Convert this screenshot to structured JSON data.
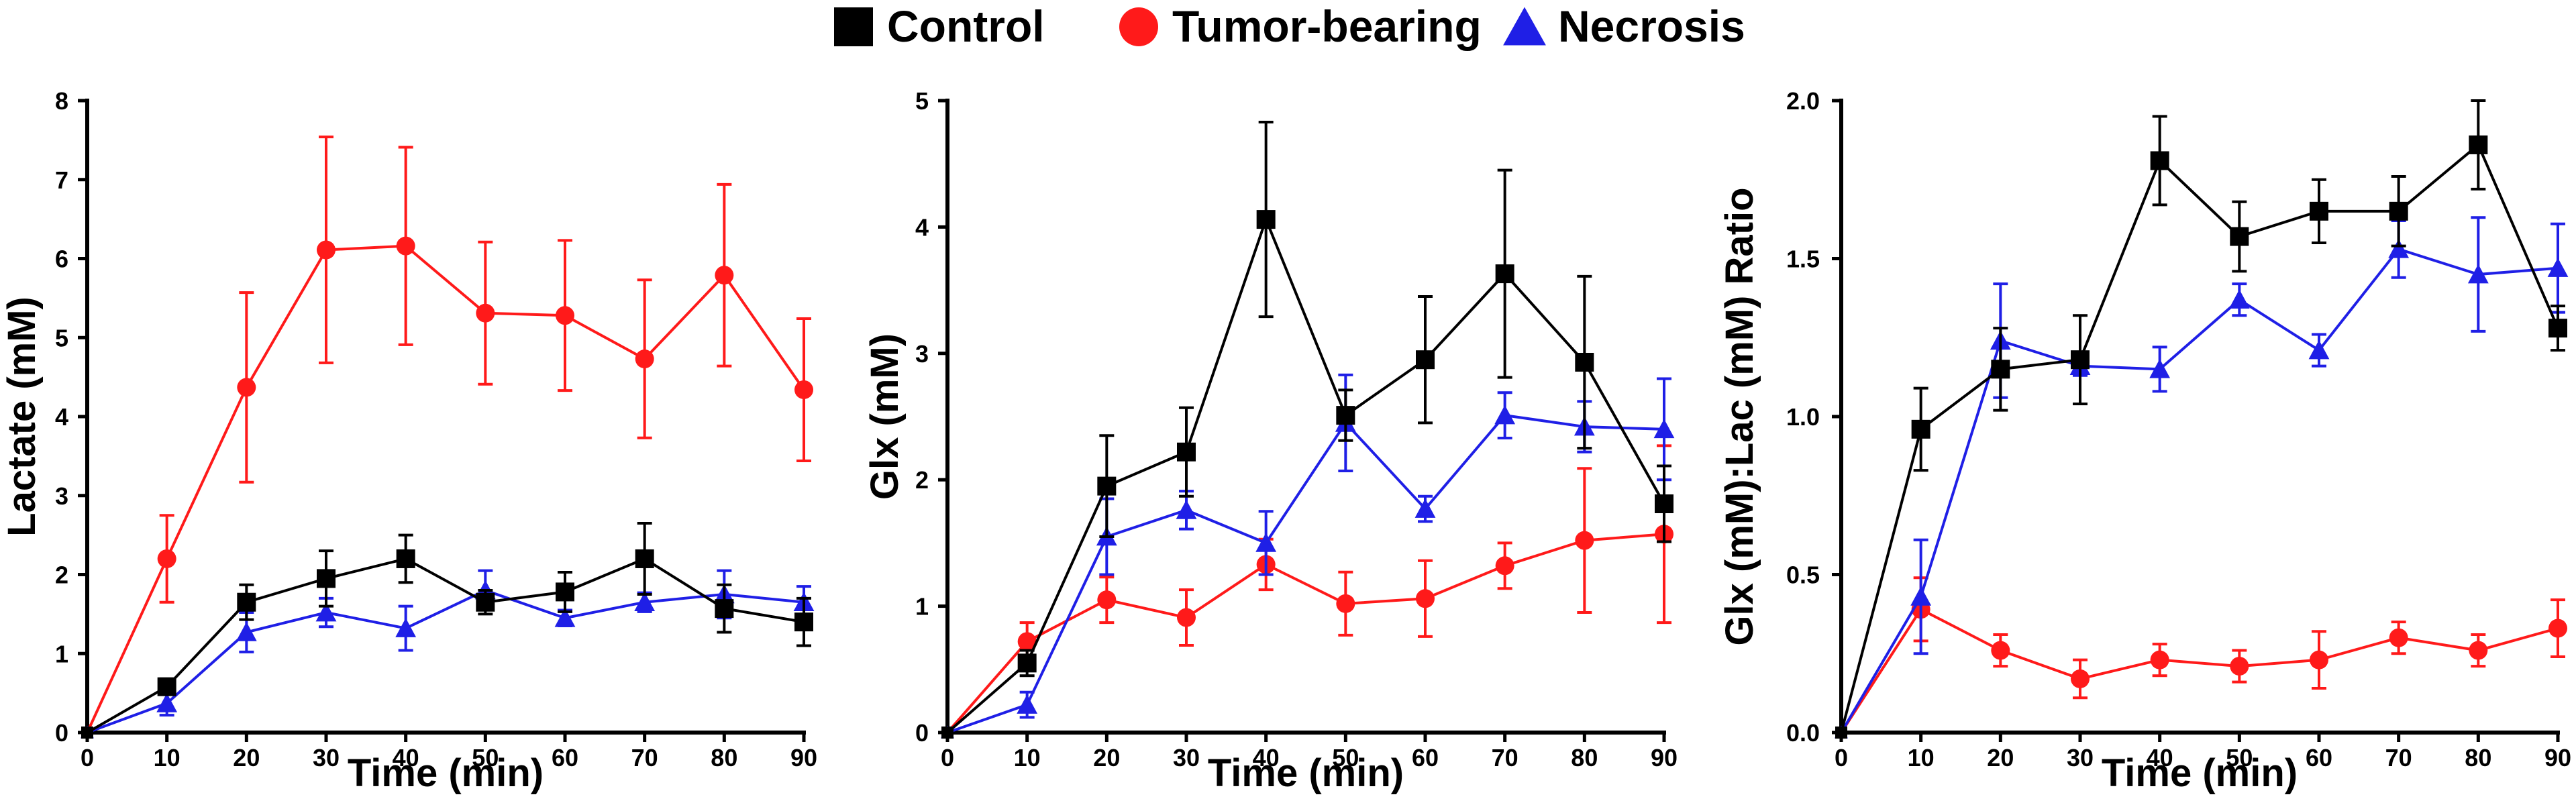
{
  "legend": [
    {
      "name": "Control",
      "color": "#000000",
      "marker": "square"
    },
    {
      "name": "Tumor-bearing",
      "color": "#ff1a1a",
      "marker": "circle"
    },
    {
      "name": "Necrosis",
      "color": "#1f1fe6",
      "marker": "triangle"
    }
  ],
  "chart_data": [
    {
      "type": "line",
      "xlabel": "Time (min)",
      "ylabel": "Lactate (mM)",
      "x": [
        0,
        10,
        20,
        30,
        40,
        50,
        60,
        70,
        80,
        90
      ],
      "xlim": [
        0,
        90
      ],
      "ylim": [
        0,
        8
      ],
      "xticks": [
        0,
        10,
        20,
        30,
        40,
        50,
        60,
        70,
        80,
        90
      ],
      "yticks": [
        0,
        1,
        2,
        3,
        4,
        5,
        6,
        7,
        8
      ],
      "ytick_labels": [
        "0",
        "1",
        "2",
        "3",
        "4",
        "5",
        "6",
        "7",
        "8"
      ],
      "series": [
        {
          "name": "Control",
          "values": [
            0,
            0.58,
            1.65,
            1.95,
            2.2,
            1.65,
            1.78,
            2.2,
            1.57,
            1.4
          ],
          "errors": [
            0,
            0.1,
            0.22,
            0.35,
            0.3,
            0.15,
            0.25,
            0.45,
            0.3,
            0.3
          ]
        },
        {
          "name": "Tumor-bearing",
          "values": [
            0,
            2.2,
            4.37,
            6.11,
            6.16,
            5.31,
            5.28,
            4.73,
            5.79,
            4.34
          ],
          "errors": [
            0,
            0.55,
            1.2,
            1.43,
            1.25,
            0.9,
            0.95,
            1.0,
            1.15,
            0.9
          ]
        },
        {
          "name": "Necrosis",
          "values": [
            0,
            0.37,
            1.27,
            1.52,
            1.32,
            1.8,
            1.45,
            1.65,
            1.75,
            1.65
          ],
          "errors": [
            0,
            0.15,
            0.25,
            0.18,
            0.28,
            0.25,
            0.1,
            0.12,
            0.3,
            0.2
          ]
        }
      ]
    },
    {
      "type": "line",
      "xlabel": "Time (min)",
      "ylabel": "Glx (mM)",
      "x": [
        0,
        10,
        20,
        30,
        40,
        50,
        60,
        70,
        80,
        90
      ],
      "xlim": [
        0,
        90
      ],
      "ylim": [
        0,
        5
      ],
      "xticks": [
        0,
        10,
        20,
        30,
        40,
        50,
        60,
        70,
        80,
        90
      ],
      "yticks": [
        0,
        1,
        2,
        3,
        4,
        5
      ],
      "ytick_labels": [
        "0",
        "1",
        "2",
        "3",
        "4",
        "5"
      ],
      "series": [
        {
          "name": "Control",
          "values": [
            0,
            0.55,
            1.95,
            2.22,
            4.06,
            2.51,
            2.95,
            3.63,
            2.93,
            1.81
          ],
          "errors": [
            0,
            0.1,
            0.4,
            0.35,
            0.77,
            0.2,
            0.5,
            0.82,
            0.68,
            0.3
          ]
        },
        {
          "name": "Tumor-bearing",
          "values": [
            0,
            0.72,
            1.05,
            0.91,
            1.33,
            1.02,
            1.06,
            1.32,
            1.52,
            1.57
          ],
          "errors": [
            0,
            0.15,
            0.18,
            0.22,
            0.2,
            0.25,
            0.3,
            0.18,
            0.57,
            0.7
          ]
        },
        {
          "name": "Necrosis",
          "values": [
            0,
            0.22,
            1.55,
            1.76,
            1.5,
            2.45,
            1.77,
            2.51,
            2.42,
            2.4
          ],
          "errors": [
            0,
            0.1,
            0.3,
            0.15,
            0.25,
            0.38,
            0.1,
            0.18,
            0.2,
            0.4
          ]
        }
      ]
    },
    {
      "type": "line",
      "xlabel": "Time (min)",
      "ylabel": "Glx (mM):Lac (mM) Ratio",
      "x": [
        0,
        10,
        20,
        30,
        40,
        50,
        60,
        70,
        80,
        90
      ],
      "xlim": [
        0,
        90
      ],
      "ylim": [
        0,
        2
      ],
      "xticks": [
        0,
        10,
        20,
        30,
        40,
        50,
        60,
        70,
        80,
        90
      ],
      "yticks": [
        0,
        0.5,
        1.0,
        1.5,
        2.0
      ],
      "ytick_labels": [
        "0.0",
        "0.5",
        "1.0",
        "1.5",
        "2.0"
      ],
      "series": [
        {
          "name": "Control",
          "values": [
            0,
            0.96,
            1.15,
            1.18,
            1.81,
            1.57,
            1.65,
            1.65,
            1.86,
            1.28
          ],
          "errors": [
            0,
            0.13,
            0.13,
            0.14,
            0.14,
            0.11,
            0.1,
            0.11,
            0.14,
            0.07
          ]
        },
        {
          "name": "Tumor-bearing",
          "values": [
            0,
            0.39,
            0.26,
            0.17,
            0.23,
            0.21,
            0.23,
            0.3,
            0.26,
            0.33
          ],
          "errors": [
            0,
            0.1,
            0.05,
            0.06,
            0.05,
            0.05,
            0.09,
            0.05,
            0.05,
            0.09
          ]
        },
        {
          "name": "Necrosis",
          "values": [
            0,
            0.43,
            1.24,
            1.16,
            1.15,
            1.37,
            1.21,
            1.53,
            1.45,
            1.47
          ],
          "errors": [
            0,
            0.18,
            0.18,
            0.03,
            0.07,
            0.05,
            0.05,
            0.09,
            0.18,
            0.14
          ]
        }
      ]
    }
  ]
}
